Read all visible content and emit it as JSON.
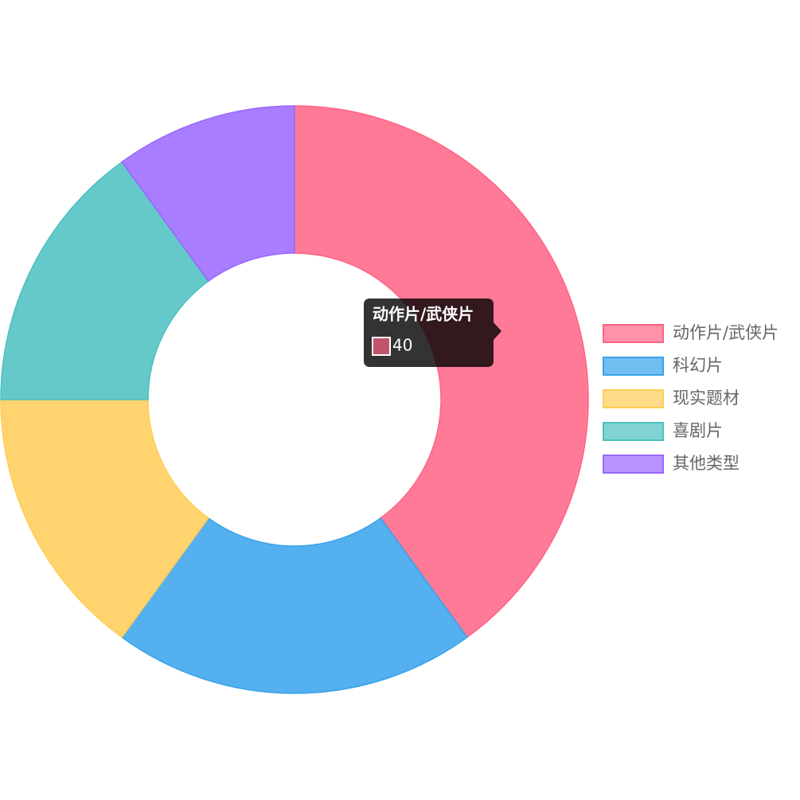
{
  "chart_data": {
    "type": "doughnut",
    "categories": [
      "动作片/武侠片",
      "科幻片",
      "现实题材",
      "喜剧片",
      "其他类型"
    ],
    "values": [
      40,
      20,
      15,
      15,
      10
    ],
    "colors": [
      "#ff6384",
      "#36a2eb",
      "#ffcd56",
      "#4bc0c0",
      "#9966ff"
    ],
    "legend": "right"
  }
}
